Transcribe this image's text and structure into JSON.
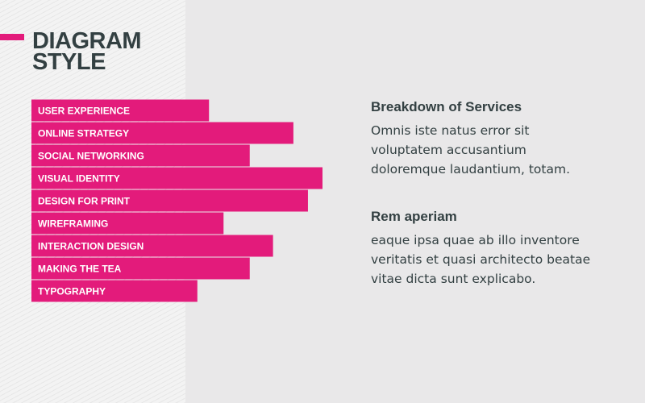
{
  "title": {
    "line1": "DIAGRAM",
    "line2": "STYLE"
  },
  "colors": {
    "accent": "#e31b7b",
    "text": "#334042",
    "background": "#e9e8e9",
    "panel": "#f3f3f3"
  },
  "chart_data": {
    "type": "bar",
    "orientation": "horizontal",
    "categories": [
      "USER EXPERIENCE",
      "ONLINE STRATEGY",
      "SOCIAL NETWORKING",
      "VISUAL IDENTITY",
      "DESIGN FOR PRINT",
      "WIREFRAMING",
      "INTERACTION DESIGN",
      "MAKING THE TEA",
      "TYPOGRAPHY"
    ],
    "values": [
      61,
      90,
      75,
      100,
      95,
      66,
      83,
      75,
      57
    ],
    "xlim": [
      0,
      100
    ],
    "grid": false,
    "legend": "none"
  },
  "blocks": [
    {
      "heading": "Breakdown of Services",
      "lines": [
        "Omnis iste natus error sit",
        "voluptatem accusantium",
        "doloremque laudantium, totam."
      ]
    },
    {
      "heading": "Rem aperiam",
      "lines": [
        "eaque ipsa quae ab illo inventore",
        "veritatis et quasi architecto beatae",
        "vitae dicta sunt explicabo."
      ]
    }
  ]
}
